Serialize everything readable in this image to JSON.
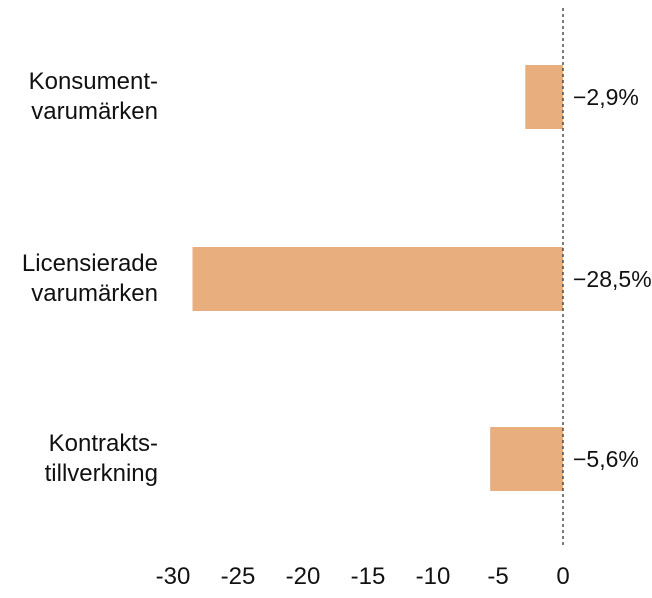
{
  "chart_data": {
    "type": "bar",
    "orientation": "horizontal",
    "title": "",
    "xlabel": "",
    "ylabel": "",
    "categories": [
      [
        "Konsument-",
        "varumärken"
      ],
      [
        "Licensierade",
        "varumärken"
      ],
      [
        "Kontrakts-",
        "tillverkning"
      ]
    ],
    "values": [
      -2.9,
      -28.5,
      -5.6
    ],
    "value_labels": [
      "−2,9%",
      "−28,5%",
      "−5,6%"
    ],
    "xlim": [
      -30,
      0
    ],
    "x_ticks": [
      -30,
      -25,
      -20,
      -15,
      -10,
      -5,
      0
    ],
    "x_tick_labels": [
      "-30",
      "-25",
      "-20",
      "-15",
      "-10",
      "-5",
      "0"
    ],
    "zero_line": "dashed",
    "grid": false,
    "legend": "none",
    "colors": {
      "bar": "#E8AE7E",
      "text": "#111111",
      "zero_line": "#333333"
    }
  }
}
